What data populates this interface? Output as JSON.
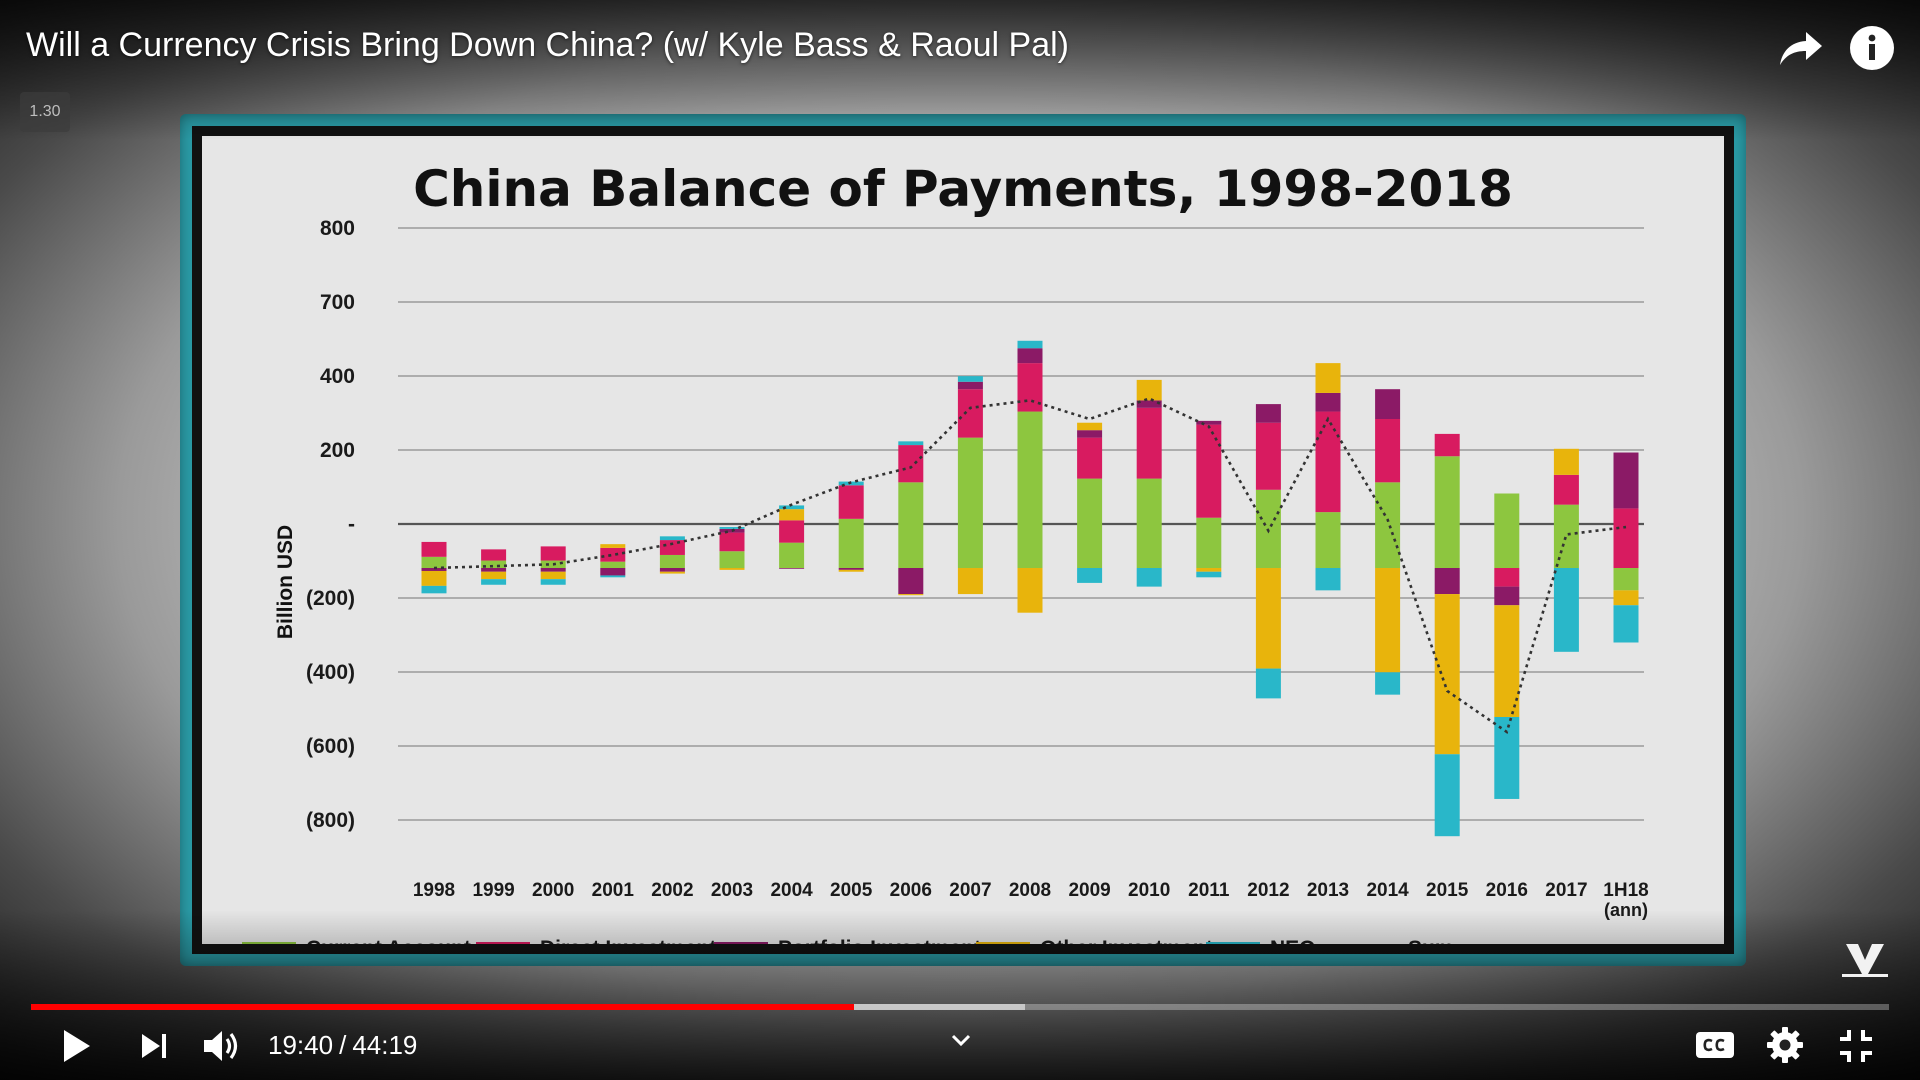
{
  "player": {
    "title_icon": "",
    "title": "Will a Currency Crisis Bring Down China? (w/ Kyle Bass & Raoul Pal)",
    "speed_badge": "1.30",
    "time_current": "19:40",
    "time_separator": "/",
    "time_total": "44:19",
    "progress_played_fraction": 0.443,
    "progress_buffered_fraction": 0.535,
    "colors": {
      "progress": "#ff0000",
      "board": "#2a9aa5"
    },
    "icons": {
      "share": "share-icon",
      "info": "info-icon",
      "play": "play-icon",
      "next": "next-icon",
      "volume": "volume-icon",
      "chevron": "chevron-down-icon",
      "captions": "captions-icon",
      "settings": "gear-icon",
      "exit_fullscreen": "exit-fullscreen-icon",
      "logo": "real-vision-logo"
    }
  },
  "chart_data": {
    "type": "bar",
    "title": "China Balance of Payments, 1998-2018",
    "ylabel": "Billion USD",
    "yticks": [
      "800",
      "700",
      "400",
      "200",
      "-",
      "(200)",
      "(400)",
      "(600)",
      "(800)"
    ],
    "categories": [
      "1998",
      "1999",
      "2000",
      "2001",
      "2002",
      "2003",
      "2004",
      "2005",
      "2006",
      "2007",
      "2008",
      "2009",
      "2010",
      "2011",
      "2012",
      "2013",
      "2014",
      "2015",
      "2016",
      "2017",
      "1H18"
    ],
    "category_sublabels": [
      "",
      "",
      "",
      "",
      "",
      "",
      "",
      "",
      "",
      "",
      "",
      "",
      "",
      "",
      "",
      "",
      "",
      "",
      "",
      "",
      "(ann)"
    ],
    "series": [
      {
        "name": "Current Account",
        "color": "#8dc63f",
        "values": [
          30,
          20,
          20,
          17,
          35,
          45,
          68,
          132,
          230,
          350,
          420,
          240,
          240,
          135,
          210,
          150,
          230,
          300,
          200,
          170,
          -60
        ]
      },
      {
        "name": "Direct Investment",
        "color": "#d81b60",
        "values": [
          40,
          30,
          38,
          37,
          40,
          50,
          60,
          90,
          100,
          130,
          130,
          110,
          190,
          250,
          180,
          270,
          170,
          60,
          -50,
          80,
          160
        ]
      },
      {
        "name": "Portfolio Investment",
        "color": "#8b1a66",
        "values": [
          -8,
          -10,
          -10,
          -20,
          -10,
          10,
          -2,
          -5,
          -70,
          20,
          40,
          20,
          20,
          10,
          50,
          50,
          80,
          -70,
          -50,
          0,
          150
        ]
      },
      {
        "name": "Other Investment",
        "color": "#e8b40c",
        "values": [
          -40,
          -20,
          -20,
          10,
          -5,
          -5,
          30,
          -5,
          -3,
          -70,
          -120,
          20,
          55,
          -10,
          -270,
          80,
          -280,
          -430,
          -300,
          70,
          -40
        ]
      },
      {
        "name": "NEO",
        "color": "#29b7c9",
        "values": [
          -20,
          -15,
          -15,
          -5,
          10,
          5,
          10,
          10,
          10,
          15,
          20,
          -40,
          -50,
          -15,
          -80,
          -60,
          -60,
          -220,
          -220,
          -225,
          -100
        ]
      },
      {
        "name": "Sum",
        "color": "#333333",
        "line": true,
        "values": [
          0,
          5,
          10,
          35,
          65,
          100,
          170,
          230,
          270,
          430,
          450,
          400,
          455,
          380,
          100,
          400,
          130,
          -330,
          -440,
          90,
          110
        ]
      }
    ],
    "grid": true,
    "legend_position": "bottom"
  }
}
